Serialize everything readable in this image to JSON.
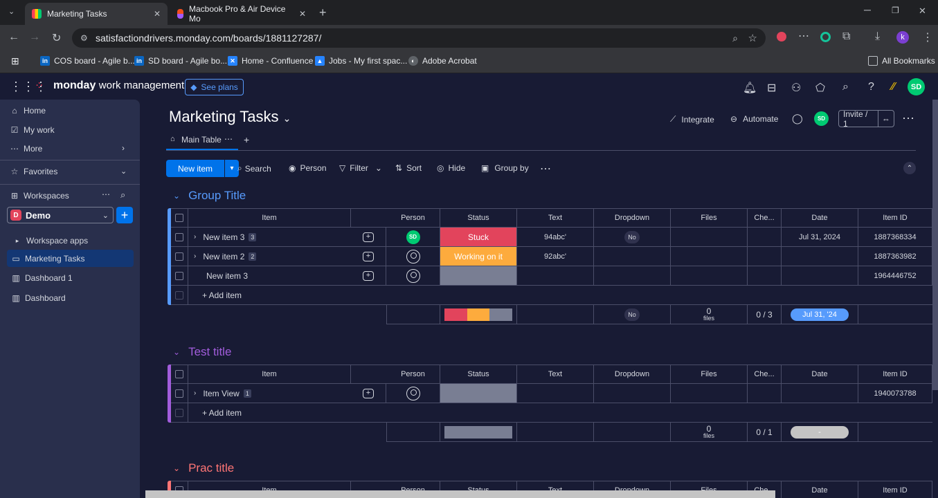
{
  "browser": {
    "tabs": [
      {
        "title": "Marketing Tasks",
        "active": true
      },
      {
        "title": "Macbook Pro & Air Device Mo",
        "active": false
      }
    ],
    "url": "satisfactiondrivers.monday.com/boards/1881127287/",
    "profile_initial": "k",
    "bookmarks": [
      "COS board - Agile b...",
      "SD board - Agile bo...",
      "Home - Confluence",
      "Jobs - My first spac...",
      "Adobe Acrobat"
    ],
    "all_bookmarks": "All Bookmarks"
  },
  "app": {
    "brand": "monday",
    "product": "work management",
    "see_plans": "See plans",
    "user_initials": "SD"
  },
  "sidebar": {
    "items": [
      "Home",
      "My work",
      "More"
    ],
    "favorites": "Favorites",
    "workspaces": "Workspaces",
    "workspace_name": "Demo",
    "workspace_letter": "D",
    "tree": [
      "Workspace apps",
      "Marketing Tasks",
      "Dashboard 1",
      "Dashboard"
    ]
  },
  "board": {
    "title": "Marketing Tasks",
    "view_tab": "Main Table",
    "integrate": "Integrate",
    "automate": "Automate",
    "invite": "Invite / 1",
    "toolbar": {
      "new_item": "New item",
      "search": "Search",
      "person": "Person",
      "filter": "Filter",
      "sort": "Sort",
      "hide": "Hide",
      "group_by": "Group by"
    },
    "columns": [
      "Item",
      "Person",
      "Status",
      "Text",
      "Dropdown",
      "Files",
      "Che...",
      "Date",
      "Item ID"
    ],
    "add_item": "+ Add item",
    "groups": [
      {
        "title": "Group Title",
        "color": "#579bfc",
        "rows": [
          {
            "name": "New item 3",
            "count": "3",
            "person": "SD",
            "status": "Stuck",
            "status_color": "#e2445c",
            "text": "94abc'",
            "dropdown": "No",
            "date": "Jul 31, 2024",
            "id": "1887368334"
          },
          {
            "name": "New item 2",
            "count": "2",
            "person": "",
            "status": "Working on it",
            "status_color": "#fdab3d",
            "text": "92abc'",
            "dropdown": "",
            "date": "",
            "id": "1887363982"
          },
          {
            "name": "New item 3",
            "count": "",
            "person": "",
            "status": "",
            "status_color": "#797e93",
            "text": "",
            "dropdown": "",
            "date": "",
            "id": "1964446752"
          }
        ],
        "summary": {
          "dropdown": "No",
          "files_count": "0",
          "files_label": "files",
          "check": "0 / 3",
          "date": "Jul 31, '24"
        }
      },
      {
        "title": "Test title",
        "color": "#a25ddc",
        "rows": [
          {
            "name": "Item View",
            "count": "1",
            "person": "",
            "status": "",
            "status_color": "#797e93",
            "text": "",
            "dropdown": "",
            "date": "",
            "id": "1940073788"
          }
        ],
        "summary": {
          "dropdown": "",
          "files_count": "0",
          "files_label": "files",
          "check": "0 / 1",
          "date": "-"
        }
      },
      {
        "title": "Prac title",
        "color": "#ff7575"
      }
    ]
  }
}
